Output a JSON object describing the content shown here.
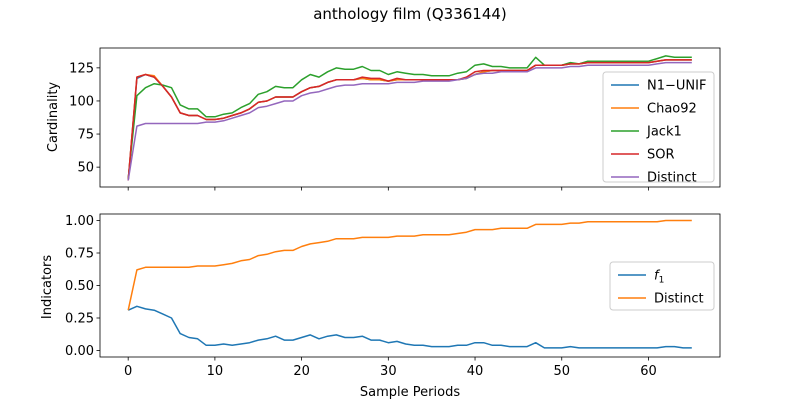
{
  "chart_data": [
    {
      "type": "line",
      "title": "anthology film (Q336144)",
      "xlabel": "",
      "ylabel": "Cardinality",
      "xlim": [
        -3.25,
        68.25
      ],
      "ylim": [
        35,
        140
      ],
      "xticks": [
        0,
        10,
        20,
        30,
        40,
        50,
        60
      ],
      "xtick_labels": [
        "",
        "",
        "",
        "",
        "",
        "",
        ""
      ],
      "yticks": [
        50,
        75,
        100,
        125
      ],
      "ytick_labels": [
        "50",
        "75",
        "100",
        "125"
      ],
      "grid": false,
      "legend": "right",
      "x": [
        0,
        1,
        2,
        3,
        4,
        5,
        6,
        7,
        8,
        9,
        10,
        11,
        12,
        13,
        14,
        15,
        16,
        17,
        18,
        19,
        20,
        21,
        22,
        23,
        24,
        25,
        26,
        27,
        28,
        29,
        30,
        31,
        32,
        33,
        34,
        35,
        36,
        37,
        38,
        39,
        40,
        41,
        42,
        43,
        44,
        45,
        46,
        47,
        48,
        49,
        50,
        51,
        52,
        53,
        54,
        55,
        56,
        57,
        58,
        59,
        60,
        61,
        62,
        63,
        64,
        65
      ],
      "series": [
        {
          "name": "N1−UNIF",
          "color": "#1f77b4",
          "values": [
            40,
            117,
            120,
            118,
            111,
            103,
            91,
            89,
            89,
            86,
            86,
            87,
            89,
            91,
            94,
            99,
            100,
            103,
            103,
            103,
            107,
            110,
            111,
            114,
            116,
            116,
            116,
            117,
            116,
            116,
            115,
            116,
            116,
            116,
            116,
            116,
            116,
            116,
            116,
            117,
            120,
            122,
            123,
            123,
            123,
            123,
            123,
            127,
            127,
            127,
            127,
            128,
            128,
            129,
            129,
            129,
            129,
            129,
            129,
            129,
            129,
            130,
            131,
            131,
            131,
            131
          ]
        },
        {
          "name": "Chao92",
          "color": "#ff7f0e",
          "values": [
            40,
            118,
            120,
            119,
            111,
            103,
            91,
            89,
            89,
            86,
            86,
            87,
            89,
            91,
            94,
            99,
            100,
            103,
            103,
            103,
            107,
            110,
            111,
            114,
            116,
            116,
            116,
            117,
            116,
            116,
            115,
            116,
            116,
            116,
            116,
            116,
            116,
            116,
            116,
            117,
            120,
            122,
            123,
            123,
            123,
            123,
            123,
            127,
            127,
            127,
            127,
            128,
            128,
            129,
            129,
            129,
            129,
            129,
            129,
            129,
            129,
            130,
            131,
            131,
            131,
            131
          ]
        },
        {
          "name": "Jack1",
          "color": "#2ca02c",
          "values": [
            41,
            104,
            110,
            113,
            112,
            110,
            97,
            94,
            94,
            88,
            88,
            90,
            91,
            95,
            98,
            105,
            107,
            111,
            110,
            110,
            116,
            120,
            118,
            122,
            125,
            124,
            124,
            126,
            123,
            123,
            120,
            122,
            121,
            120,
            120,
            119,
            119,
            119,
            121,
            122,
            127,
            128,
            126,
            126,
            125,
            125,
            125,
            133,
            127,
            127,
            127,
            129,
            128,
            130,
            130,
            130,
            130,
            130,
            130,
            130,
            130,
            132,
            134,
            133,
            133,
            133
          ]
        },
        {
          "name": "SOR",
          "color": "#d62728",
          "values": [
            40,
            118,
            120,
            118,
            111,
            103,
            91,
            89,
            89,
            86,
            86,
            87,
            89,
            91,
            94,
            99,
            100,
            103,
            103,
            103,
            107,
            110,
            111,
            114,
            116,
            116,
            116,
            118,
            117,
            117,
            115,
            117,
            116,
            116,
            116,
            116,
            116,
            116,
            116,
            118,
            122,
            123,
            123,
            123,
            123,
            123,
            123,
            127,
            127,
            127,
            127,
            128,
            128,
            129,
            129,
            129,
            129,
            129,
            129,
            129,
            129,
            130,
            131,
            131,
            131,
            131
          ]
        },
        {
          "name": "Distinct",
          "color": "#9467bd",
          "values": [
            40,
            81,
            83,
            83,
            83,
            83,
            83,
            83,
            83,
            84,
            84,
            85,
            87,
            89,
            91,
            95,
            96,
            98,
            100,
            100,
            104,
            106,
            107,
            109,
            111,
            112,
            112,
            113,
            113,
            113,
            113,
            114,
            114,
            114,
            115,
            115,
            115,
            115,
            116,
            117,
            120,
            121,
            121,
            122,
            122,
            122,
            122,
            125,
            125,
            125,
            125,
            126,
            126,
            127,
            127,
            127,
            127,
            127,
            127,
            127,
            127,
            128,
            129,
            129,
            129,
            129
          ]
        }
      ]
    },
    {
      "type": "line",
      "title": "",
      "xlabel": "Sample Periods",
      "ylabel": "Indicators",
      "xlim": [
        -3.25,
        68.25
      ],
      "ylim": [
        -0.05,
        1.05
      ],
      "xticks": [
        0,
        10,
        20,
        30,
        40,
        50,
        60
      ],
      "xtick_labels": [
        "0",
        "10",
        "20",
        "30",
        "40",
        "50",
        "60"
      ],
      "yticks": [
        0.0,
        0.25,
        0.5,
        0.75,
        1.0
      ],
      "ytick_labels": [
        "0.00",
        "0.25",
        "0.50",
        "0.75",
        "1.00"
      ],
      "grid": false,
      "legend": "right",
      "x": [
        0,
        1,
        2,
        3,
        4,
        5,
        6,
        7,
        8,
        9,
        10,
        11,
        12,
        13,
        14,
        15,
        16,
        17,
        18,
        19,
        20,
        21,
        22,
        23,
        24,
        25,
        26,
        27,
        28,
        29,
        30,
        31,
        32,
        33,
        34,
        35,
        36,
        37,
        38,
        39,
        40,
        41,
        42,
        43,
        44,
        45,
        46,
        47,
        48,
        49,
        50,
        51,
        52,
        53,
        54,
        55,
        56,
        57,
        58,
        59,
        60,
        61,
        62,
        63,
        64,
        65
      ],
      "series": [
        {
          "name": "f1",
          "color": "#1f77b4",
          "values": [
            0.31,
            0.34,
            0.32,
            0.31,
            0.28,
            0.25,
            0.13,
            0.1,
            0.09,
            0.04,
            0.04,
            0.05,
            0.04,
            0.05,
            0.06,
            0.08,
            0.09,
            0.11,
            0.08,
            0.08,
            0.1,
            0.12,
            0.09,
            0.11,
            0.12,
            0.1,
            0.1,
            0.11,
            0.08,
            0.08,
            0.06,
            0.07,
            0.05,
            0.04,
            0.04,
            0.03,
            0.03,
            0.03,
            0.04,
            0.04,
            0.06,
            0.06,
            0.04,
            0.04,
            0.03,
            0.03,
            0.03,
            0.06,
            0.02,
            0.02,
            0.02,
            0.03,
            0.02,
            0.02,
            0.02,
            0.02,
            0.02,
            0.02,
            0.02,
            0.02,
            0.02,
            0.02,
            0.03,
            0.03,
            0.02,
            0.02
          ]
        },
        {
          "name": "Distinct",
          "color": "#ff7f0e",
          "values": [
            0.31,
            0.62,
            0.64,
            0.64,
            0.64,
            0.64,
            0.64,
            0.64,
            0.65,
            0.65,
            0.65,
            0.66,
            0.67,
            0.69,
            0.7,
            0.73,
            0.74,
            0.76,
            0.77,
            0.77,
            0.8,
            0.82,
            0.83,
            0.84,
            0.86,
            0.86,
            0.86,
            0.87,
            0.87,
            0.87,
            0.87,
            0.88,
            0.88,
            0.88,
            0.89,
            0.89,
            0.89,
            0.89,
            0.9,
            0.91,
            0.93,
            0.93,
            0.93,
            0.94,
            0.94,
            0.94,
            0.94,
            0.97,
            0.97,
            0.97,
            0.97,
            0.98,
            0.98,
            0.99,
            0.99,
            0.99,
            0.99,
            0.99,
            0.99,
            0.99,
            0.99,
            0.99,
            1.0,
            1.0,
            1.0,
            1.0
          ]
        }
      ]
    }
  ]
}
